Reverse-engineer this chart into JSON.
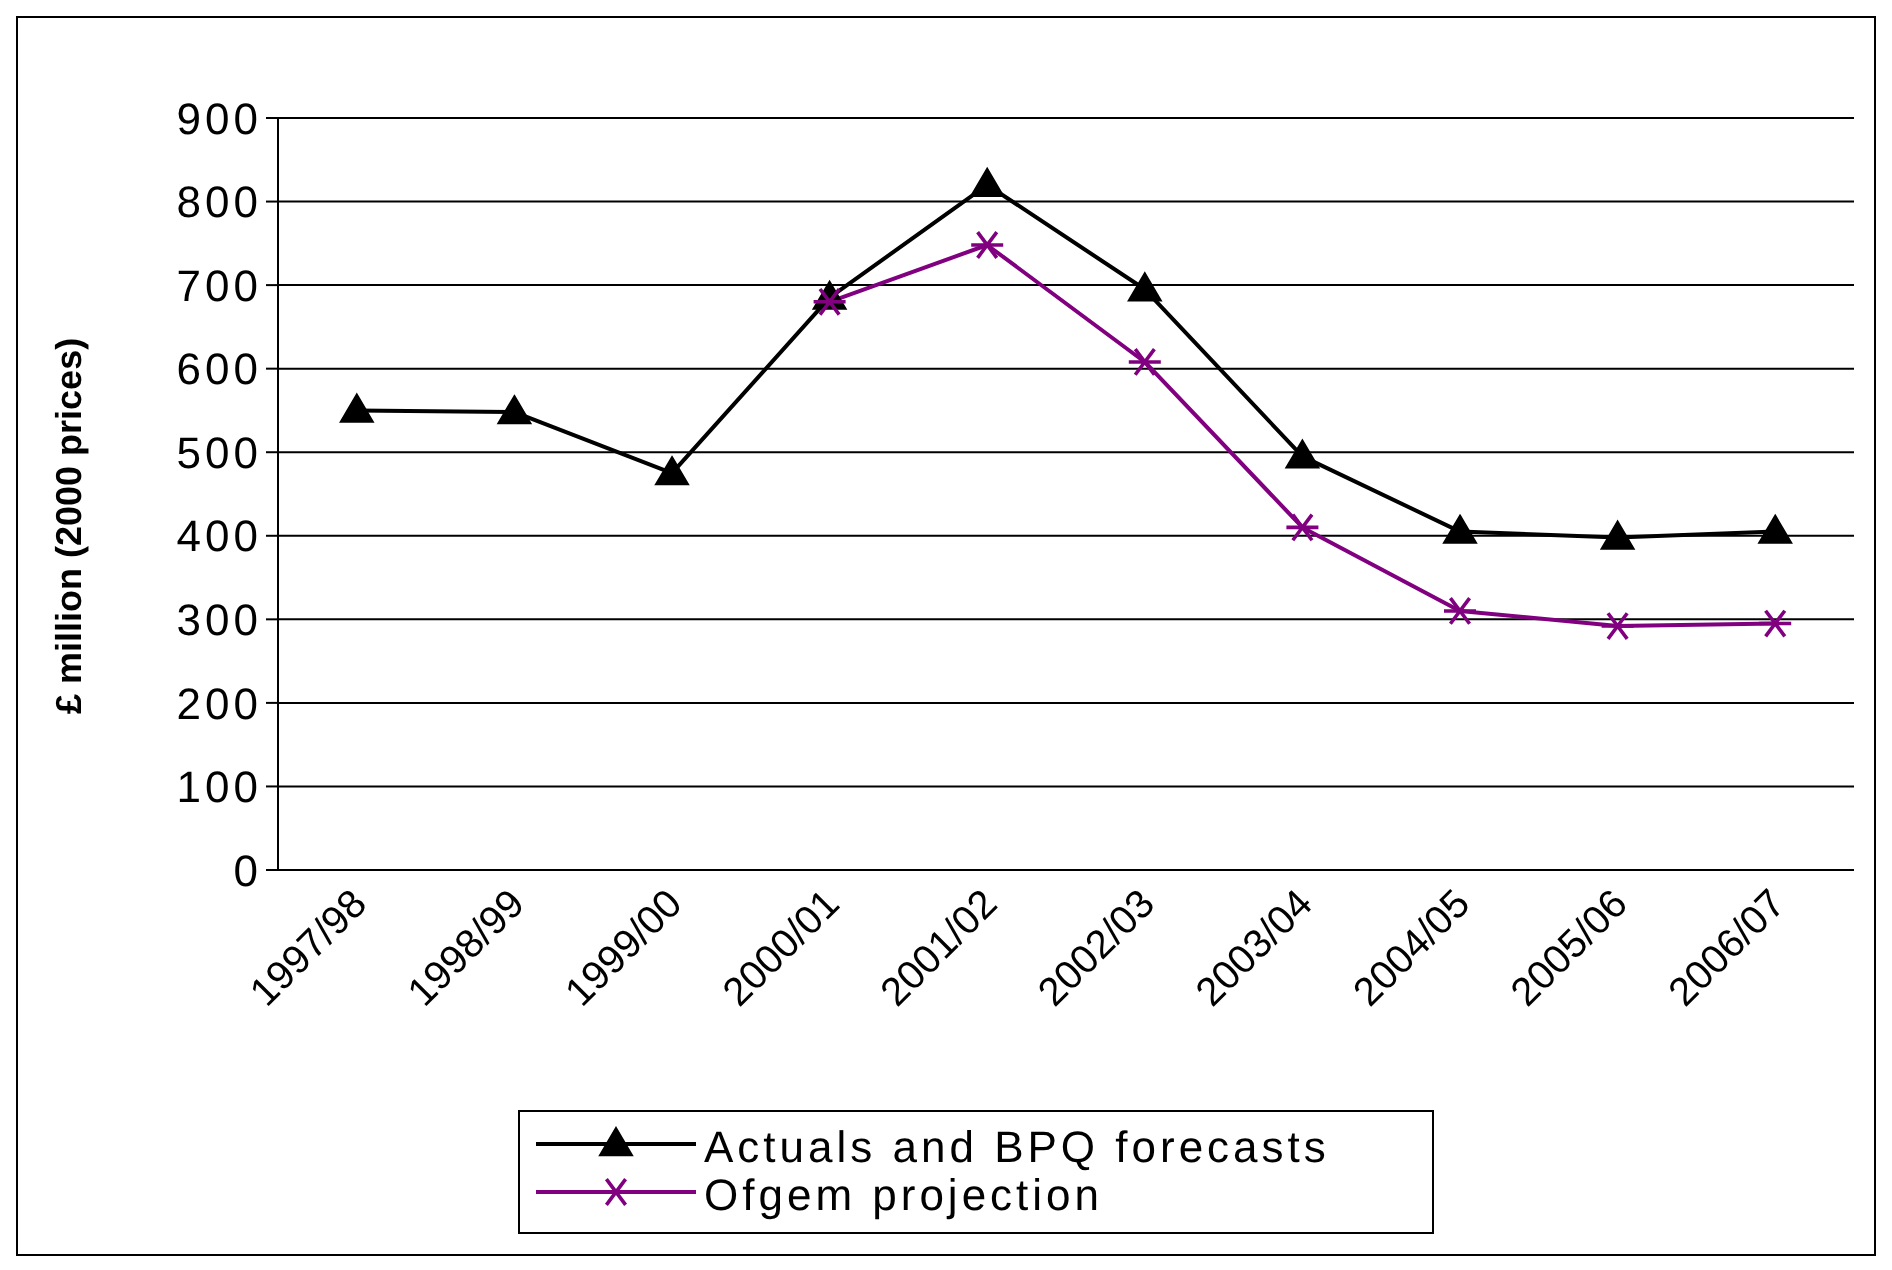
{
  "chart_data": {
    "type": "line",
    "ylabel": "£ million (2000 prices)",
    "categories": [
      "1997/98",
      "1998/99",
      "1999/00",
      "2000/01",
      "2001/02",
      "2002/03",
      "2003/04",
      "2004/05",
      "2005/06",
      "2006/07"
    ],
    "series": [
      {
        "name": "Actuals and BPQ forecasts",
        "color": "#000000",
        "marker": "triangle",
        "values": [
          550,
          548,
          475,
          685,
          820,
          695,
          495,
          405,
          398,
          405
        ]
      },
      {
        "name": "Ofgem projection",
        "color": "#800080",
        "marker": "cross",
        "values": [
          null,
          null,
          null,
          680,
          748,
          608,
          410,
          310,
          292,
          295
        ]
      }
    ],
    "ylim": [
      0,
      900
    ],
    "yticks": [
      0,
      100,
      200,
      300,
      400,
      500,
      600,
      700,
      800,
      900
    ],
    "grid": "y",
    "legend": "bottom",
    "line_style": "solid"
  }
}
